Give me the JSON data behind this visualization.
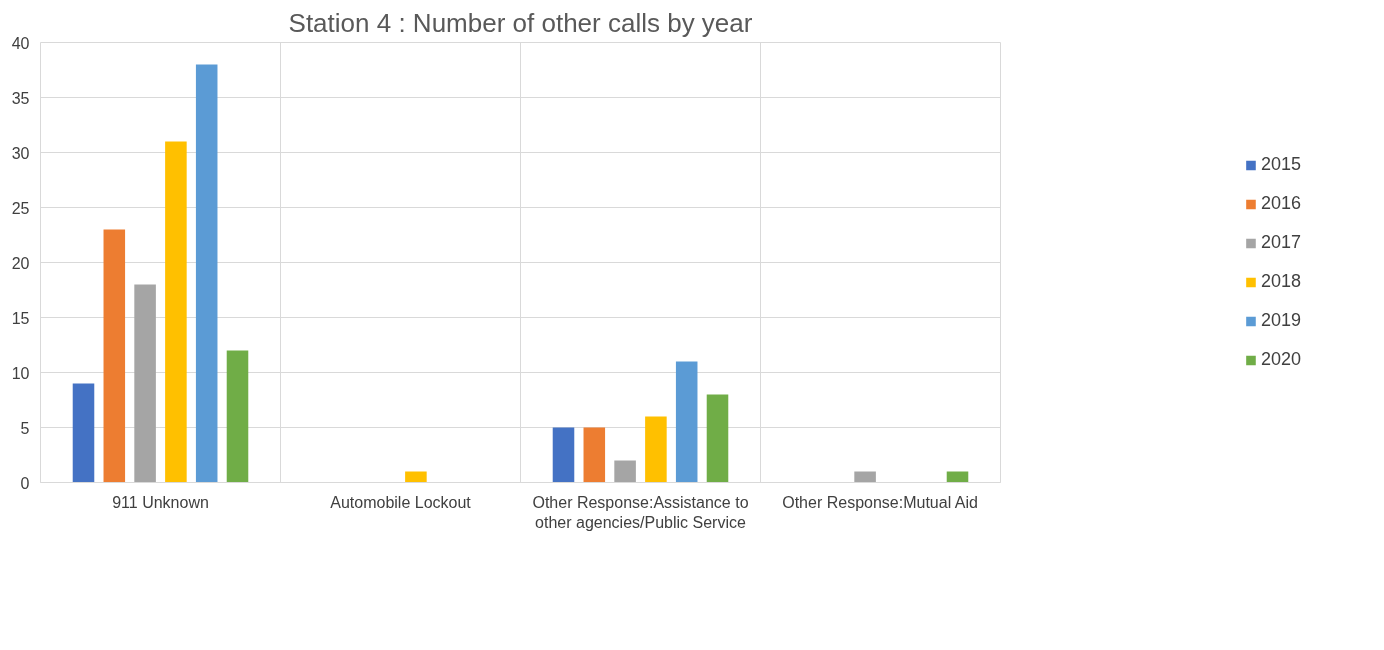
{
  "chart_data": {
    "type": "bar",
    "title": "Station 4 : Number of other calls by year",
    "categories": [
      "911 Unknown",
      "Automobile Lockout",
      "Other Response:Assistance to other agencies/Public Service",
      "Other Response:Mutual Aid"
    ],
    "series": [
      {
        "name": "2015",
        "color": "#4472c4",
        "values": [
          9,
          0,
          5,
          0
        ]
      },
      {
        "name": "2016",
        "color": "#ed7d31",
        "values": [
          23,
          0,
          5,
          0
        ]
      },
      {
        "name": "2017",
        "color": "#a5a5a5",
        "values": [
          18,
          0,
          2,
          1
        ]
      },
      {
        "name": "2018",
        "color": "#ffc000",
        "values": [
          31,
          1,
          6,
          0
        ]
      },
      {
        "name": "2019",
        "color": "#5b9bd5",
        "values": [
          38,
          0,
          11,
          0
        ]
      },
      {
        "name": "2020",
        "color": "#70ad47",
        "values": [
          12,
          0,
          8,
          1
        ]
      }
    ],
    "ylim": [
      0,
      40
    ],
    "yticks": [
      0,
      5,
      10,
      15,
      20,
      25,
      30,
      35,
      40
    ],
    "grid": true,
    "legend": "right"
  }
}
